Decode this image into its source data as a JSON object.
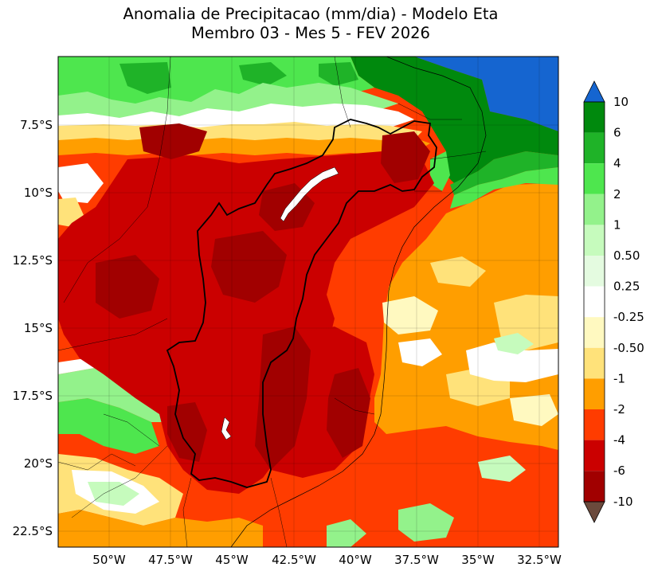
{
  "title": {
    "line1": "Anomalia de Precipitacao (mm/dia) - Modelo Eta",
    "line2": "Membro 03 - Mes 5 - FEV 2026"
  },
  "axes": {
    "x_ticks": [
      "50°W",
      "47.5°W",
      "45°W",
      "42.5°W",
      "40°W",
      "37.5°W",
      "35°W",
      "32.5°W"
    ],
    "y_ticks": [
      "7.5°S",
      "10°S",
      "12.5°S",
      "15°S",
      "17.5°S",
      "20°S",
      "22.5°S"
    ]
  },
  "colorbar": {
    "labels": [
      "10",
      "6",
      "4",
      "2",
      "1",
      "0.50",
      "0.25",
      "-0.25",
      "-0.50",
      "-1",
      "-2",
      "-4",
      "-6",
      "-10"
    ],
    "colors": {
      "over": "#1565d0",
      "c10_6": "#00890d",
      "c6_4": "#1fb328",
      "c4_2": "#4ee64e",
      "c2_1": "#93f28b",
      "c1_050": "#c6fbbd",
      "c050_025": "#e4fbe0",
      "c025_m025": "#ffffff",
      "cm025_m050": "#fff9c0",
      "cm050_m1": "#ffe27a",
      "cm1_m2": "#ff9e00",
      "cm2_m4": "#ff3c00",
      "cm4_m6": "#cb0000",
      "cm6_m10": "#a10000",
      "under": "#6b4a3c"
    }
  }
}
